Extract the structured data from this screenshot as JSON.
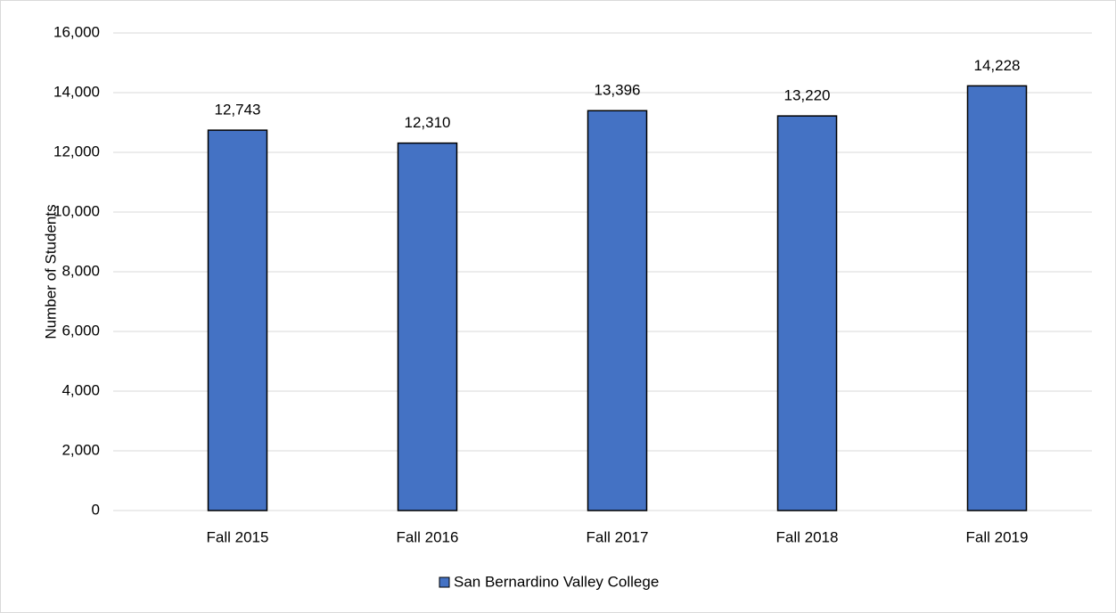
{
  "chart_data": {
    "type": "bar",
    "y_axis_label": "Number of Students",
    "categories": [
      "Fall 2015",
      "Fall 2016",
      "Fall 2017",
      "Fall 2018",
      "Fall 2019"
    ],
    "series": [
      {
        "name": "San Bernardino Valley College",
        "color": "#4472c4",
        "values": [
          12743,
          12310,
          13396,
          13220,
          14228
        ],
        "value_labels": [
          "12,743",
          "12,310",
          "13,396",
          "13,220",
          "14,228"
        ]
      }
    ],
    "ylim": [
      0,
      16000
    ],
    "yticks": [
      0,
      {
        "value": 2000,
        "label": "2,000"
      },
      {
        "value": 4000,
        "label": "4,000"
      },
      {
        "value": 6000,
        "label": "6,000"
      },
      {
        "value": 8000,
        "label": "8,000"
      },
      {
        "value": 10000,
        "label": "10,000"
      },
      {
        "value": 12000,
        "label": "12,000"
      },
      {
        "value": 14000,
        "label": "14,000"
      },
      {
        "value": 16000,
        "label": "16,000"
      }
    ],
    "grid": true,
    "legend": "bottom"
  }
}
